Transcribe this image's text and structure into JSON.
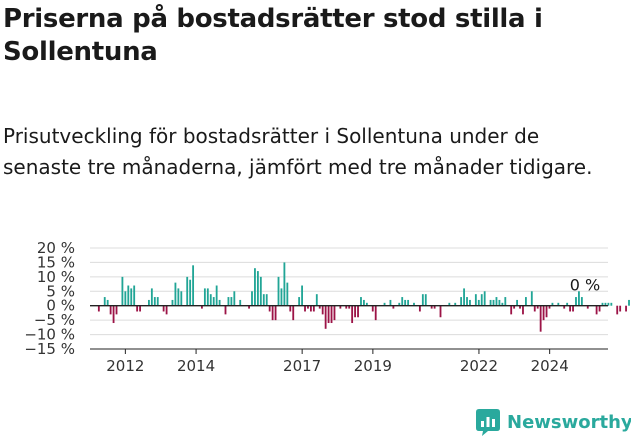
{
  "title": "Priserna på bostadsrätter stod stilla i Sollentuna",
  "subtitle": "Prisutveckling för bostadsrätter i Sollentuna under de senaste tre månaderna, jämfört med tre månader tidigare.",
  "brand": {
    "name": "Newsworthy",
    "icon": "newsworthy-logo-icon",
    "color": "#2aa99d"
  },
  "chart_data": {
    "type": "bar",
    "unit": "%",
    "ylim": [
      -15,
      20
    ],
    "y_ticks": [
      20,
      15,
      10,
      5,
      0,
      -5,
      -10,
      -15
    ],
    "y_tick_labels": [
      "20 %",
      "15 %",
      "10 %",
      "5 %",
      "0 %",
      "−5 %",
      "−10 %",
      "−15 %"
    ],
    "x_tick_labels": [
      "2012",
      "2014",
      "2017",
      "2019",
      "2022",
      "2024"
    ],
    "x_tick_values": [
      2012.0,
      2014.0,
      2017.0,
      2019.0,
      2022.0,
      2024.0
    ],
    "grid": true,
    "positive_color": "#21a596",
    "negative_color": "#9c1447",
    "annotation": {
      "text": "0 %",
      "x": 2025.0
    },
    "x_start": 2011.1667,
    "x_step": 0.0833,
    "values": [
      0,
      -2,
      0,
      3,
      2,
      -3,
      -6,
      -3,
      0,
      10,
      5,
      7,
      6,
      7,
      -2,
      -2,
      0,
      0,
      2,
      6,
      3,
      3,
      0,
      -2,
      -3,
      0,
      2,
      8,
      6,
      5,
      0,
      10,
      9,
      14,
      0,
      0,
      -1,
      6,
      6,
      4,
      3,
      7,
      2,
      0,
      -3,
      3,
      3,
      5,
      0,
      2,
      0,
      0,
      -1,
      5,
      13,
      12,
      10,
      4,
      4,
      -2,
      -5,
      -5,
      10,
      6,
      15,
      8,
      -2,
      -5,
      0,
      3,
      7,
      -2,
      -1,
      -2,
      -2,
      4,
      -1,
      -3,
      -8,
      -6,
      -6,
      -5,
      0,
      -1,
      0,
      -1,
      -1,
      -6,
      -4,
      -4,
      3,
      2,
      1,
      0,
      -2,
      -5,
      0,
      0,
      1,
      0,
      2,
      -1,
      0,
      1,
      3,
      2,
      2,
      0,
      1,
      0,
      -2,
      4,
      4,
      0,
      -1,
      -1,
      0,
      -4,
      0,
      0,
      1,
      0,
      1,
      0,
      3,
      6,
      3,
      2,
      0,
      4,
      2,
      4,
      5,
      0,
      2,
      2,
      3,
      2,
      1,
      3,
      0,
      -3,
      -1,
      2,
      -1,
      -3,
      3,
      0,
      5,
      -2,
      -1,
      -9,
      -5,
      -4,
      -1,
      1,
      0,
      1,
      0,
      -1,
      1,
      -2,
      -2,
      3,
      5,
      3,
      0,
      -1,
      0,
      0,
      -3,
      -2,
      1,
      1,
      1,
      1,
      0,
      -3,
      -2,
      0,
      -2,
      2,
      0,
      0,
      2,
      -3
    ]
  }
}
